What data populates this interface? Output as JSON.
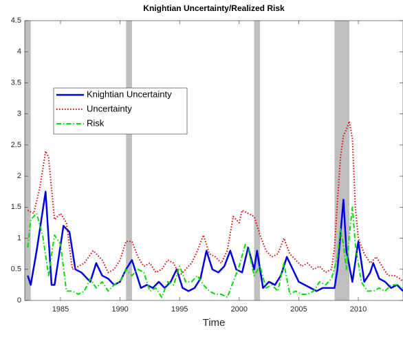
{
  "chart_data": {
    "type": "line",
    "title": "Knightian Uncertainty/Realized Risk",
    "x_label": "Time",
    "xlim": [
      1982,
      2013.75
    ],
    "ylim": [
      0,
      4.5
    ],
    "xticks": [
      1985,
      1990,
      1995,
      2000,
      2005,
      2010
    ],
    "yticks": [
      0,
      0.5,
      1,
      1.5,
      2,
      2.5,
      3,
      3.5,
      4,
      4.5
    ],
    "shaded_periods": [
      [
        1982,
        1982.5
      ],
      [
        1990.5,
        1991
      ],
      [
        2001.25,
        2001.75
      ],
      [
        2008,
        2009.25
      ]
    ],
    "shade_color": "#bfbfbf",
    "legend": "upper left",
    "series": [
      {
        "name": "Knightian Uncertainty",
        "color": "#0000e0",
        "style": "solid",
        "x": [
          1982.25,
          1982.5,
          1983,
          1983.75,
          1984.25,
          1984.5,
          1985.25,
          1985.75,
          1986.25,
          1986.75,
          1987.5,
          1988,
          1988.5,
          1989,
          1989.5,
          1990,
          1990.5,
          1991,
          1991.25,
          1991.75,
          1992.25,
          1992.75,
          1993.25,
          1993.75,
          1994.25,
          1994.75,
          1995.25,
          1995.75,
          1996.25,
          1996.75,
          1997.25,
          1997.75,
          1998.25,
          1998.75,
          1999.25,
          1999.75,
          2000.25,
          2000.75,
          2001.25,
          2001.5,
          2002,
          2002.5,
          2003,
          2003.5,
          2004,
          2004.5,
          2005,
          2005.5,
          2006,
          2006.5,
          2007,
          2007.5,
          2008,
          2008.25,
          2008.75,
          2009,
          2009.5,
          2010,
          2010.5,
          2011,
          2011.25,
          2011.75,
          2012.25,
          2012.75,
          2013.25,
          2013.75
        ],
        "values": [
          0.4,
          0.25,
          0.8,
          1.75,
          0.25,
          0.25,
          1.2,
          1.1,
          0.5,
          0.45,
          0.3,
          0.6,
          0.4,
          0.35,
          0.25,
          0.3,
          0.5,
          0.65,
          0.5,
          0.2,
          0.25,
          0.2,
          0.3,
          0.2,
          0.3,
          0.5,
          0.2,
          0.15,
          0.2,
          0.35,
          0.8,
          0.5,
          0.45,
          0.55,
          0.8,
          0.5,
          0.45,
          0.85,
          0.5,
          0.8,
          0.2,
          0.3,
          0.25,
          0.4,
          0.7,
          0.5,
          0.3,
          0.25,
          0.2,
          0.15,
          0.2,
          0.2,
          0.2,
          0.5,
          1.62,
          0.8,
          0.3,
          0.95,
          0.3,
          0.45,
          0.6,
          0.35,
          0.3,
          0.2,
          0.25,
          0.15
        ]
      },
      {
        "name": "Uncertainty",
        "color": "#e00000",
        "style": "dotted",
        "x": [
          1982.25,
          1982.75,
          1983.25,
          1983.75,
          1984,
          1984.5,
          1985,
          1985.5,
          1986,
          1986.5,
          1987,
          1987.75,
          1988.5,
          1989,
          1989.5,
          1990,
          1990.5,
          1991,
          1991.5,
          1992,
          1992.5,
          1993,
          1993.5,
          1994,
          1994.5,
          1995,
          1995.5,
          1996,
          1996.5,
          1997,
          1997.5,
          1998,
          1998.5,
          1999,
          1999.5,
          2000,
          2000.25,
          2000.75,
          2001.25,
          2001.75,
          2002.25,
          2002.75,
          2003.25,
          2003.75,
          2004.25,
          2004.75,
          2005.25,
          2005.75,
          2006.25,
          2006.75,
          2007.25,
          2007.75,
          2008,
          2008.25,
          2008.5,
          2008.75,
          2009,
          2009.25,
          2009.5,
          2009.75,
          2010,
          2010.5,
          2011,
          2011.5,
          2012,
          2012.5,
          2013,
          2013.5,
          2013.75
        ],
        "values": [
          1.45,
          1.4,
          1.8,
          2.4,
          2.3,
          1.3,
          1.4,
          1.25,
          0.5,
          0.55,
          0.6,
          0.8,
          0.65,
          0.45,
          0.5,
          0.65,
          0.95,
          0.95,
          0.7,
          0.55,
          0.6,
          0.45,
          0.5,
          0.65,
          0.6,
          0.4,
          0.5,
          0.6,
          0.8,
          1.05,
          0.75,
          0.7,
          0.6,
          0.8,
          1.35,
          1.25,
          1.45,
          1.4,
          1.35,
          1.05,
          0.8,
          0.7,
          0.75,
          1.0,
          0.75,
          0.65,
          0.55,
          0.6,
          0.5,
          0.55,
          0.45,
          0.5,
          0.85,
          1.6,
          2.3,
          2.65,
          2.75,
          2.88,
          2.6,
          1.5,
          1.0,
          0.75,
          0.6,
          0.7,
          0.55,
          0.4,
          0.4,
          0.35,
          0.3
        ]
      },
      {
        "name": "Risk",
        "color": "#00dd00",
        "style": "dashdot",
        "x": [
          1982.25,
          1982.5,
          1983,
          1983.5,
          1984,
          1984.5,
          1985,
          1985.5,
          1986,
          1986.5,
          1987,
          1987.5,
          1988,
          1988.5,
          1989,
          1989.5,
          1990,
          1990.5,
          1991,
          1991.5,
          1992,
          1992.5,
          1993,
          1993.5,
          1994,
          1994.5,
          1995,
          1995.5,
          1996,
          1996.5,
          1997,
          1997.5,
          1998,
          1998.5,
          1999,
          1999.5,
          2000,
          2000.5,
          2000.75,
          2001.25,
          2001.75,
          2002.25,
          2002.75,
          2003.25,
          2003.75,
          2004.25,
          2004.75,
          2005.25,
          2005.75,
          2006.25,
          2006.75,
          2007.25,
          2007.75,
          2008.25,
          2008.5,
          2008.75,
          2009,
          2009.25,
          2009.5,
          2009.75,
          2010.25,
          2010.75,
          2011.25,
          2011.75,
          2012.25,
          2012.75,
          2013.25,
          2013.75
        ],
        "values": [
          0.85,
          1.3,
          1.4,
          1.05,
          0.4,
          1.05,
          0.9,
          0.15,
          0.15,
          0.1,
          0.15,
          0.35,
          0.2,
          0.3,
          0.15,
          0.25,
          0.3,
          0.5,
          0.4,
          0.5,
          0.45,
          0.15,
          0.2,
          0.05,
          0.3,
          0.25,
          0.55,
          0.3,
          0.3,
          0.4,
          0.25,
          0.15,
          0.1,
          0.1,
          0.05,
          0.3,
          0.55,
          0.9,
          0.85,
          0.4,
          0.55,
          0.2,
          0.25,
          0.15,
          0.6,
          0.1,
          0.15,
          0.1,
          0.1,
          0.15,
          0.3,
          0.25,
          0.35,
          0.7,
          1.15,
          0.9,
          0.5,
          1.05,
          1.5,
          0.9,
          0.3,
          0.15,
          0.15,
          0.2,
          0.15,
          0.25,
          0.25,
          0.2
        ]
      }
    ]
  }
}
